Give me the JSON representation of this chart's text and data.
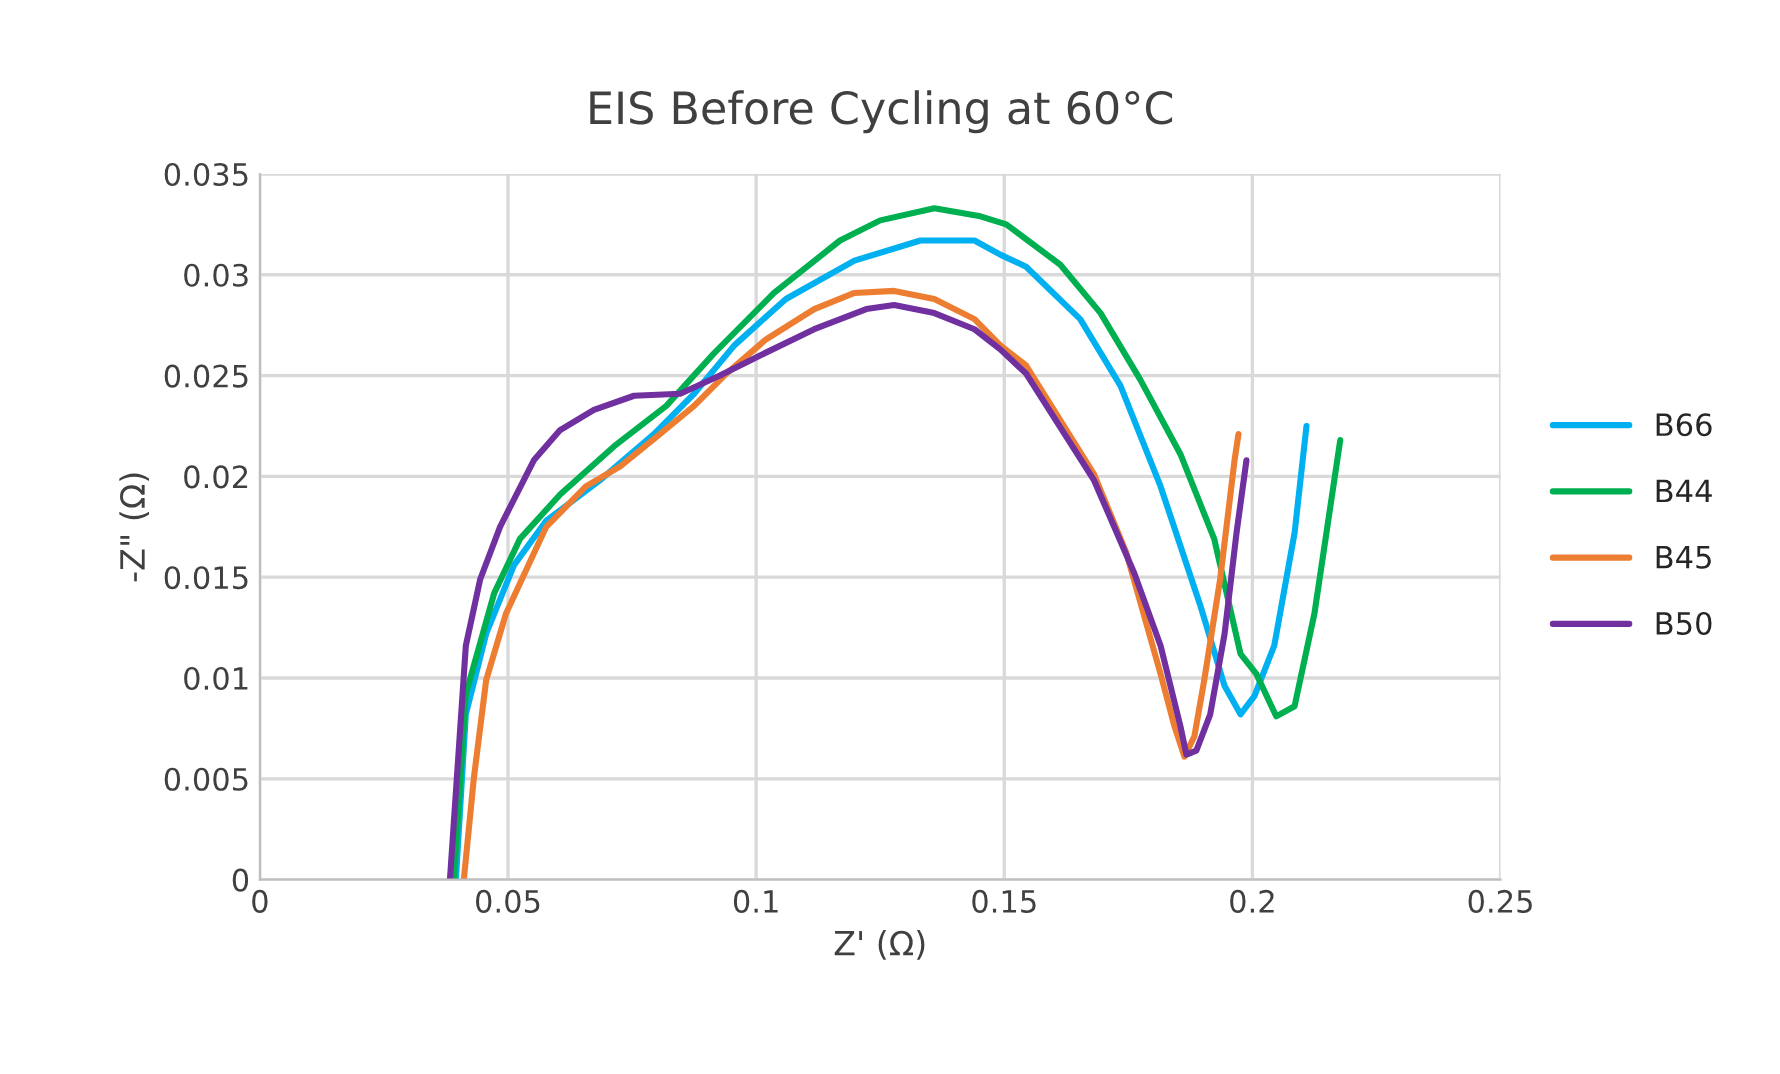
{
  "chart_data": {
    "type": "line",
    "title": "EIS Before Cycling at 60°C",
    "xlabel": "Z' (Ω)",
    "ylabel": "-Z\" (Ω)",
    "xlim": [
      0,
      0.25
    ],
    "xticks": [
      0,
      0.05,
      0.1,
      0.15,
      0.2,
      0.25
    ],
    "ylim": [
      0,
      0.035
    ],
    "yticks": [
      0,
      0.005,
      0.01,
      0.015,
      0.02,
      0.025,
      0.03,
      0.035
    ],
    "grid": true,
    "legend": "right",
    "marker": "none",
    "line_style": "solid",
    "series": [
      {
        "name": "B66",
        "color": "#00b0f0",
        "x": [
          0.0395,
          0.0415,
          0.0456,
          0.0512,
          0.0577,
          0.0685,
          0.0794,
          0.0875,
          0.0956,
          0.106,
          0.1198,
          0.1331,
          0.144,
          0.1492,
          0.1544,
          0.1653,
          0.1734,
          0.1815,
          0.1895,
          0.1944,
          0.1976,
          0.2004,
          0.2044,
          0.2085,
          0.2109
        ],
        "values": [
          0,
          0.0082,
          0.0122,
          0.0156,
          0.0178,
          0.0198,
          0.0221,
          0.0241,
          0.0265,
          0.0288,
          0.0307,
          0.0317,
          0.0317,
          0.031,
          0.0304,
          0.0278,
          0.0245,
          0.0195,
          0.0136,
          0.0096,
          0.0082,
          0.0091,
          0.0116,
          0.0172,
          0.0225
        ]
      },
      {
        "name": "B44",
        "color": "#00b050",
        "x": [
          0.0391,
          0.0415,
          0.0472,
          0.0524,
          0.0605,
          0.0714,
          0.0819,
          0.0915,
          0.1036,
          0.1169,
          0.125,
          0.1359,
          0.1452,
          0.1504,
          0.1613,
          0.1694,
          0.1774,
          0.1855,
          0.1923,
          0.1976,
          0.2008,
          0.2048,
          0.2085,
          0.2125,
          0.2177
        ],
        "values": [
          0,
          0.0092,
          0.0142,
          0.0169,
          0.0191,
          0.0215,
          0.0235,
          0.0261,
          0.0291,
          0.0317,
          0.0327,
          0.0333,
          0.0329,
          0.0325,
          0.0305,
          0.0281,
          0.0248,
          0.0211,
          0.0169,
          0.0112,
          0.0102,
          0.0081,
          0.0086,
          0.0132,
          0.0218
        ]
      },
      {
        "name": "B45",
        "color": "#ed7d31",
        "x": [
          0.0411,
          0.0431,
          0.0456,
          0.0496,
          0.0577,
          0.0657,
          0.0726,
          0.0806,
          0.0875,
          0.094,
          0.102,
          0.1117,
          0.1198,
          0.1278,
          0.1359,
          0.144,
          0.1492,
          0.1544,
          0.1681,
          0.1746,
          0.1815,
          0.1843,
          0.1863,
          0.1883,
          0.1903,
          0.1935,
          0.1964,
          0.1972
        ],
        "values": [
          0,
          0.005,
          0.0099,
          0.0132,
          0.0175,
          0.0195,
          0.0205,
          0.0221,
          0.0235,
          0.0251,
          0.0268,
          0.0283,
          0.0291,
          0.0292,
          0.0288,
          0.0278,
          0.0265,
          0.0255,
          0.0201,
          0.0162,
          0.0102,
          0.0076,
          0.0061,
          0.0071,
          0.0099,
          0.0149,
          0.0208,
          0.0221
        ]
      },
      {
        "name": "B50",
        "color": "#7030a0",
        "x": [
          0.0383,
          0.0415,
          0.0444,
          0.0484,
          0.0552,
          0.0605,
          0.0673,
          0.0754,
          0.0847,
          0.0927,
          0.1008,
          0.1117,
          0.1222,
          0.1278,
          0.1359,
          0.144,
          0.1492,
          0.1544,
          0.1681,
          0.1762,
          0.1815,
          0.1855,
          0.1867,
          0.1887,
          0.1915,
          0.1944,
          0.1968,
          0.1988
        ],
        "values": [
          0,
          0.0116,
          0.0149,
          0.0175,
          0.0208,
          0.0223,
          0.0233,
          0.024,
          0.0241,
          0.025,
          0.026,
          0.0273,
          0.0283,
          0.0285,
          0.0281,
          0.0273,
          0.0263,
          0.0251,
          0.0198,
          0.0152,
          0.0116,
          0.0076,
          0.0062,
          0.0064,
          0.0082,
          0.0122,
          0.0172,
          0.0208
        ]
      }
    ]
  }
}
